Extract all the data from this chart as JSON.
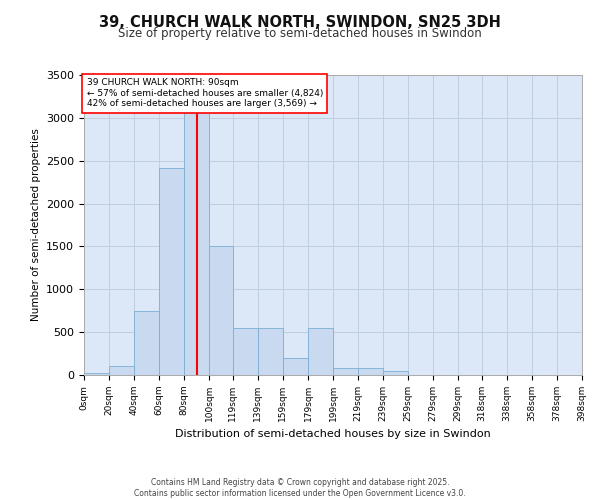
{
  "title_line1": "39, CHURCH WALK NORTH, SWINDON, SN25 3DH",
  "title_line2": "Size of property relative to semi-detached houses in Swindon",
  "xlabel": "Distribution of semi-detached houses by size in Swindon",
  "ylabel": "Number of semi-detached properties",
  "property_size": 90,
  "annotation_line1": "39 CHURCH WALK NORTH: 90sqm",
  "annotation_line2": "← 57% of semi-detached houses are smaller (4,824)",
  "annotation_line3": "42% of semi-detached houses are larger (3,569) →",
  "footnote1": "Contains HM Land Registry data © Crown copyright and database right 2025.",
  "footnote2": "Contains public sector information licensed under the Open Government Licence v3.0.",
  "bin_edges": [
    0,
    20,
    40,
    60,
    80,
    100,
    119,
    139,
    159,
    179,
    199,
    219,
    239,
    259,
    279,
    299,
    318,
    338,
    358,
    378,
    398
  ],
  "bin_labels": [
    "0sqm",
    "20sqm",
    "40sqm",
    "60sqm",
    "80sqm",
    "100sqm",
    "119sqm",
    "139sqm",
    "159sqm",
    "179sqm",
    "199sqm",
    "219sqm",
    "239sqm",
    "259sqm",
    "279sqm",
    "299sqm",
    "318sqm",
    "338sqm",
    "358sqm",
    "378sqm",
    "398sqm"
  ],
  "counts": [
    25,
    110,
    750,
    2420,
    3300,
    1500,
    550,
    550,
    200,
    550,
    80,
    80,
    50,
    0,
    0,
    0,
    0,
    0,
    0,
    0
  ],
  "bar_color": "#c9d9f0",
  "bar_edge_color": "#7aafd4",
  "vline_color": "red",
  "vline_x": 90,
  "background_color": "#ffffff",
  "grid_color": "#c0cfe0",
  "ylim": [
    0,
    3500
  ],
  "yticks": [
    0,
    500,
    1000,
    1500,
    2000,
    2500,
    3000,
    3500
  ],
  "ax_facecolor": "#dce8f8"
}
